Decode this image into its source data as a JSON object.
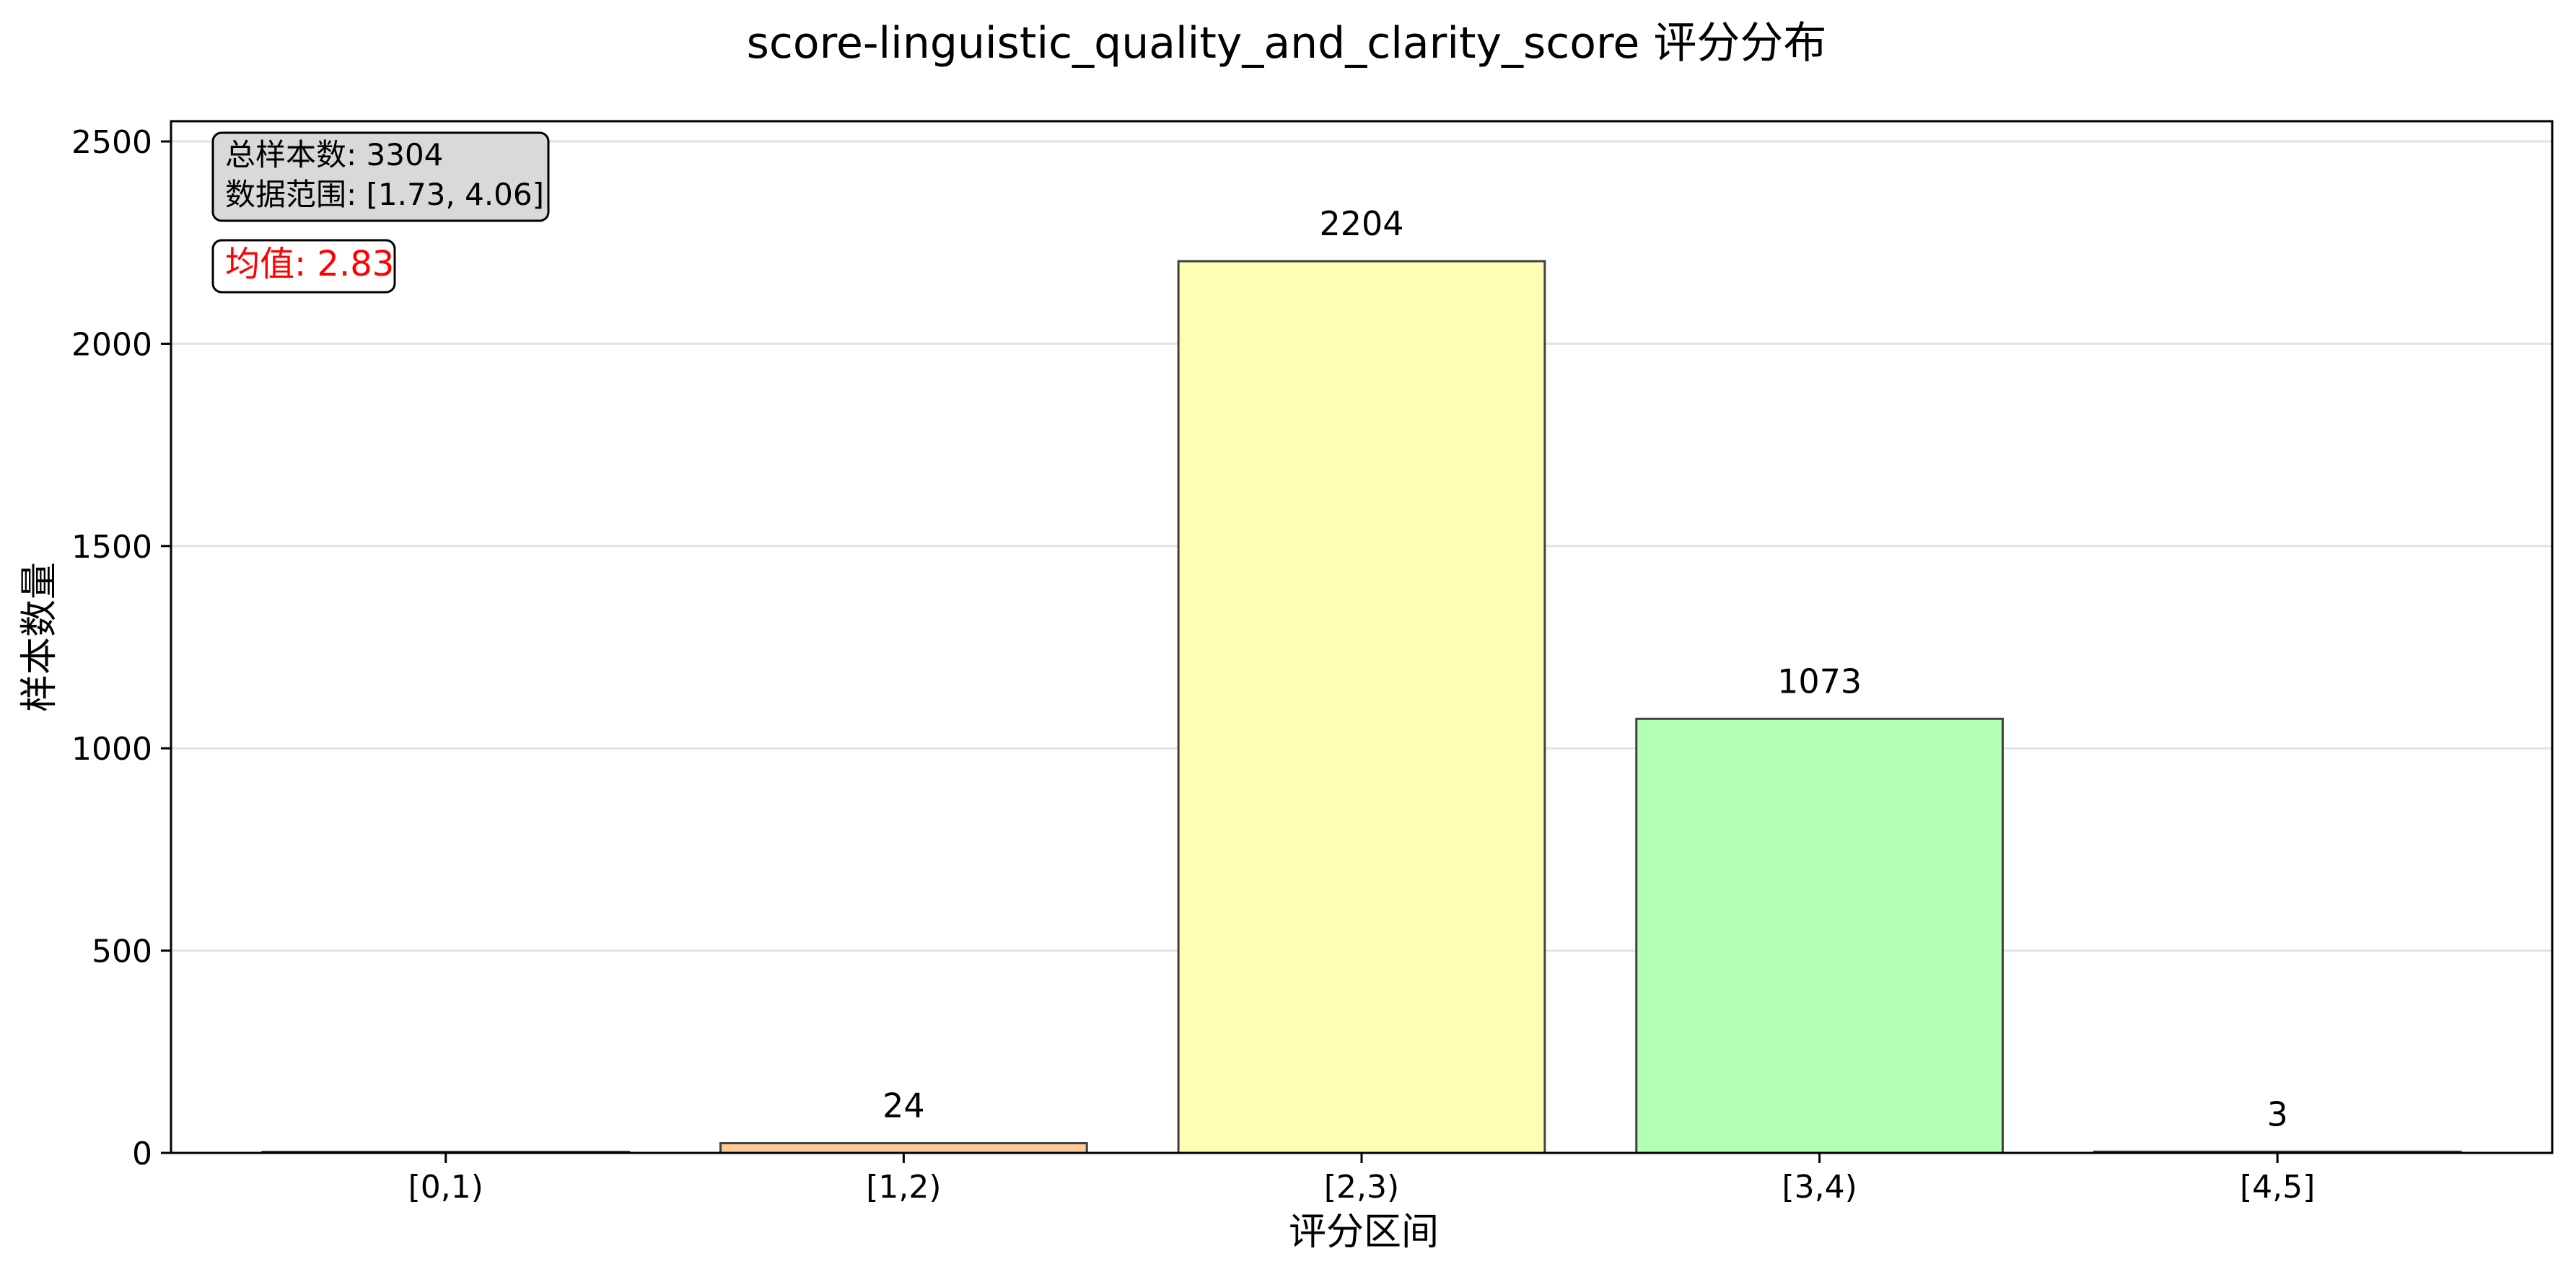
{
  "chart_data": {
    "type": "bar",
    "title": "score-linguistic_quality_and_clarity_score 评分分布",
    "xlabel": "评分区间",
    "ylabel": "样本数量",
    "categories": [
      "[0,1)",
      "[1,2)",
      "[2,3)",
      "[3,4)",
      "[4,5]"
    ],
    "values": [
      0,
      24,
      2204,
      1073,
      3
    ],
    "data_labels": [
      "",
      "24",
      "2204",
      "1073",
      "3"
    ],
    "bar_colors": [
      "#ff9999",
      "#ffcc99",
      "#ffffb3",
      "#b3ffb3",
      "#99ccff"
    ],
    "ylim": [
      0,
      2550
    ],
    "yticks": [
      0,
      500,
      1000,
      1500,
      2000,
      2500
    ],
    "grid": "y",
    "info_box": {
      "line1": "总样本数: 3304",
      "line2": "数据范围: [1.73, 4.06]"
    },
    "mean_label": "均值: 2.83"
  }
}
